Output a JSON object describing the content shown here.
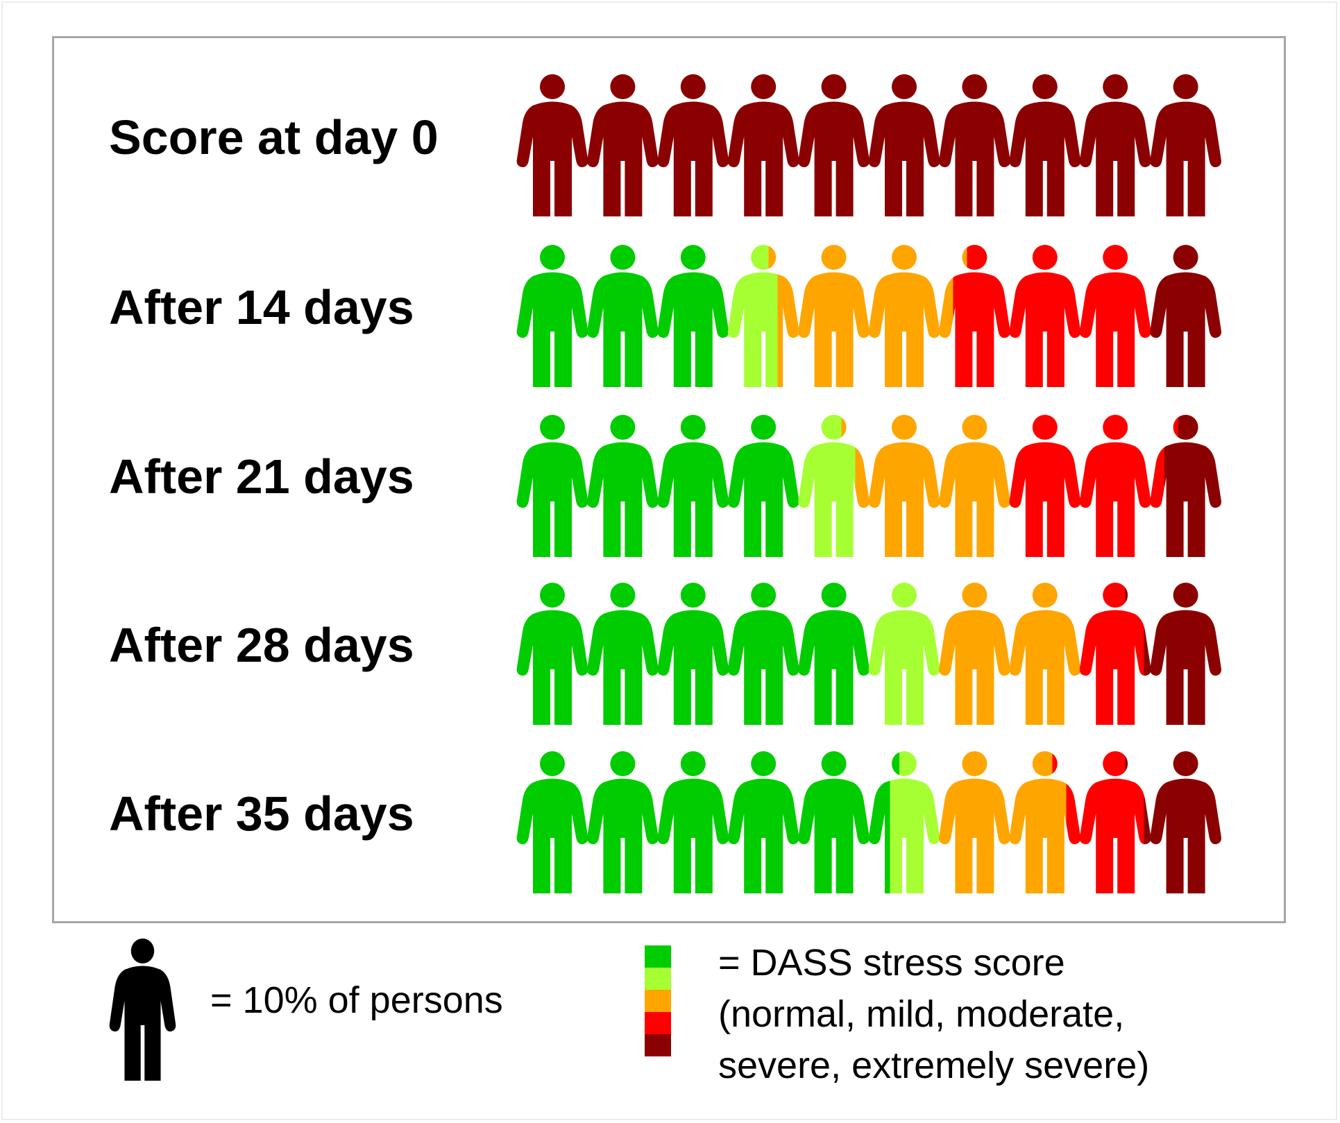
{
  "chart_data": {
    "type": "pictogram",
    "rows": [
      {
        "label": "Score at day 0",
        "values": [
          0,
          0,
          0,
          0,
          100
        ]
      },
      {
        "label": "After 14 days",
        "values": [
          30,
          7,
          25,
          28,
          10
        ]
      },
      {
        "label": "After 21 days",
        "values": [
          40,
          8,
          22,
          22,
          8
        ]
      },
      {
        "label": "After 28 days",
        "values": [
          50,
          10,
          20,
          9,
          11
        ]
      },
      {
        "label": "After 35 days",
        "values": [
          53,
          7,
          18,
          11,
          11
        ]
      }
    ],
    "unit_per_figure": 10,
    "categories": [
      "normal",
      "mild",
      "moderate",
      "severe",
      "extremely severe"
    ],
    "colors": [
      "#00cc00",
      "#a6ff33",
      "#ffa500",
      "#ff0000",
      "#8b0000"
    ]
  },
  "legend": {
    "person_text": "= 10% of persons",
    "score_lines": [
      "= DASS stress score",
      "(normal, mild, moderate,",
      "severe, extremely severe)"
    ],
    "person_color": "#000000"
  }
}
